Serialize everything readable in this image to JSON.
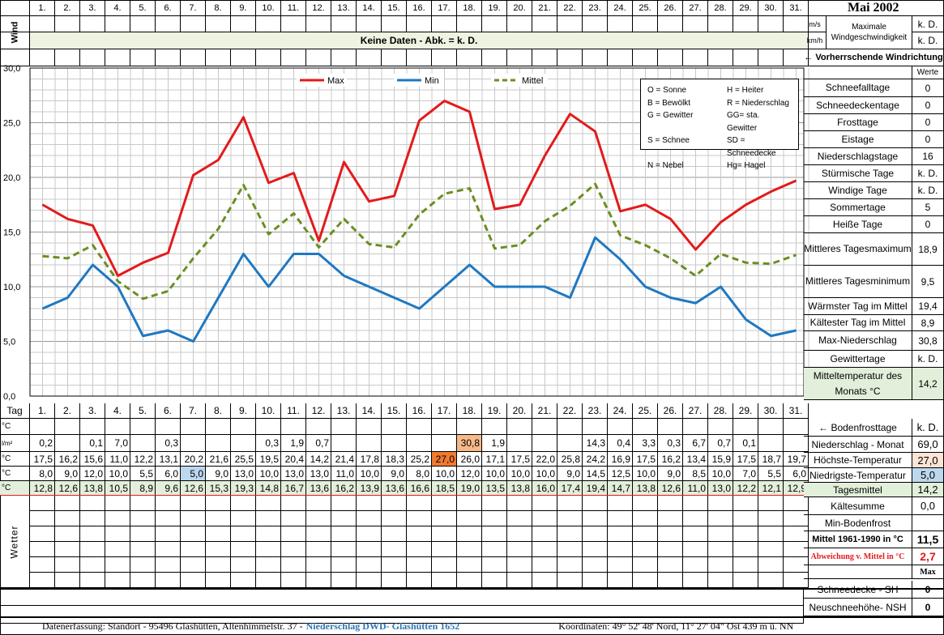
{
  "header": {
    "title": "Mai 2002",
    "days": [
      "1.",
      "2.",
      "3.",
      "4.",
      "5.",
      "6.",
      "7.",
      "8.",
      "9.",
      "10.",
      "11.",
      "12.",
      "13.",
      "14.",
      "15.",
      "16.",
      "17.",
      "18.",
      "19.",
      "20.",
      "21.",
      "22.",
      "23.",
      "24.",
      "25.",
      "26.",
      "27.",
      "28.",
      "29.",
      "30.",
      "31."
    ],
    "wind_label": "Wind",
    "no_data": "Keine Daten - Abk. = k. D.",
    "unit_ms": "m/s",
    "unit_kmh": "km/h",
    "max_wind_label_1": "Maximale",
    "max_wind_label_2": "Windgeschwindigkeit",
    "kd1": "k. D.",
    "kd2": "k. D.",
    "wind_dir": "← Vorherrschende Windrichtung"
  },
  "chart_data": {
    "type": "line",
    "categories": [
      "1.",
      "2.",
      "3.",
      "4.",
      "5.",
      "6.",
      "7.",
      "8.",
      "9.",
      "10.",
      "11.",
      "12.",
      "13.",
      "14.",
      "15.",
      "16.",
      "17.",
      "18.",
      "19.",
      "20.",
      "21.",
      "22.",
      "23.",
      "24.",
      "25.",
      "26.",
      "27.",
      "28.",
      "29.",
      "30.",
      "31."
    ],
    "ylim": [
      0,
      30
    ],
    "yticks": [
      "0,0",
      "5,0",
      "10,0",
      "15,0",
      "20,0",
      "25,0",
      "30,0"
    ],
    "grid": true,
    "legend_position": "top",
    "series": [
      {
        "name": "Max",
        "color": "#e31a1c",
        "dash": false,
        "values": [
          17.5,
          16.2,
          15.6,
          11.0,
          12.2,
          13.1,
          20.2,
          21.6,
          25.5,
          19.5,
          20.4,
          14.2,
          21.4,
          17.8,
          18.3,
          25.2,
          27.0,
          26.0,
          17.1,
          17.5,
          22.0,
          25.8,
          24.2,
          16.9,
          17.5,
          16.2,
          13.4,
          15.9,
          17.5,
          18.7,
          19.7
        ]
      },
      {
        "name": "Min",
        "color": "#1f78c1",
        "dash": false,
        "values": [
          8.0,
          9.0,
          12.0,
          10.0,
          5.5,
          6.0,
          5.0,
          9.0,
          13.0,
          10.0,
          13.0,
          13.0,
          11.0,
          10.0,
          9.0,
          8.0,
          10.0,
          12.0,
          10.0,
          10.0,
          10.0,
          9.0,
          14.5,
          12.5,
          10.0,
          9.0,
          8.5,
          10.0,
          7.0,
          5.5,
          6.0
        ]
      },
      {
        "name": "Mittel",
        "color": "#6b8e23",
        "dash": true,
        "values": [
          12.8,
          12.6,
          13.8,
          10.5,
          8.9,
          9.6,
          12.6,
          15.3,
          19.3,
          14.8,
          16.7,
          13.6,
          16.2,
          13.9,
          13.6,
          16.6,
          18.5,
          19.0,
          13.5,
          13.8,
          16.0,
          17.4,
          19.4,
          14.7,
          13.8,
          12.6,
          11.0,
          13.0,
          12.2,
          12.1,
          12.9
        ]
      }
    ]
  },
  "abbrev": [
    [
      "O = Sonne",
      "H = Heiter"
    ],
    [
      "B = Bewölkt",
      "R = Niederschlag"
    ],
    [
      "G = Gewitter",
      "GG= sta. Gewitter"
    ],
    [
      "S = Schnee",
      "SD = Schneedecke"
    ],
    [
      "N = Nebel",
      "Hg= Hagel"
    ]
  ],
  "stats": {
    "werte_header": "Werte",
    "rows": [
      {
        "label": "Schneefalltage",
        "value": "0"
      },
      {
        "label": "Schneedeckentage",
        "value": "0"
      },
      {
        "label": "Frosttage",
        "value": "0"
      },
      {
        "label": "Eistage",
        "value": "0"
      },
      {
        "label": "Niederschlagstage",
        "value": "16"
      },
      {
        "label": "Stürmische Tage",
        "value": "k. D."
      },
      {
        "label": "Windige Tage",
        "value": "k. D."
      },
      {
        "label": "Sommertage",
        "value": "5"
      },
      {
        "label": "Heiße Tage",
        "value": "0"
      },
      {
        "label": "Mittleres Tagesmaximum",
        "value": "18,9"
      },
      {
        "label": "Mittleres Tagesminimum",
        "value": "9,5"
      },
      {
        "label": "Wärmster Tag im Mittel",
        "value": "19,4"
      },
      {
        "label": "Kältester Tag im Mittel",
        "value": "8,9"
      },
      {
        "label": "Max-Niederschlag",
        "value": "30,8"
      },
      {
        "label": "Gewittertage",
        "value": "k. D."
      },
      {
        "label": "Mitteltemperatur des Monats °C",
        "value": "14,2"
      }
    ]
  },
  "table": {
    "tag_label": "Tag",
    "unit_c": "°C",
    "unit_lm": "l/m²",
    "boden_c": [],
    "precip": [
      "0,2",
      "",
      "0,1",
      "7,0",
      "",
      "0,3",
      "",
      "",
      "",
      "0,3",
      "1,9",
      "0,7",
      "",
      "",
      "",
      "",
      "",
      "30,8",
      "1,9",
      "",
      "",
      "",
      "14,3",
      "0,4",
      "3,3",
      "0,3",
      "6,7",
      "0,7",
      "0,1",
      "",
      ""
    ],
    "max": [
      "17,5",
      "16,2",
      "15,6",
      "11,0",
      "12,2",
      "13,1",
      "20,2",
      "21,6",
      "25,5",
      "19,5",
      "20,4",
      "14,2",
      "21,4",
      "17,8",
      "18,3",
      "25,2",
      "27,0",
      "26,0",
      "17,1",
      "17,5",
      "22,0",
      "25,8",
      "24,2",
      "16,9",
      "17,5",
      "16,2",
      "13,4",
      "15,9",
      "17,5",
      "18,7",
      "19,7"
    ],
    "min": [
      "8,0",
      "9,0",
      "12,0",
      "10,0",
      "5,5",
      "6,0",
      "5,0",
      "9,0",
      "13,0",
      "10,0",
      "13,0",
      "13,0",
      "11,0",
      "10,0",
      "9,0",
      "8,0",
      "10,0",
      "12,0",
      "10,0",
      "10,0",
      "10,0",
      "9,0",
      "14,5",
      "12,5",
      "10,0",
      "9,0",
      "8,5",
      "10,0",
      "7,0",
      "5,5",
      "6,0"
    ],
    "mean": [
      "12,8",
      "12,6",
      "13,8",
      "10,5",
      "8,9",
      "9,6",
      "12,6",
      "15,3",
      "19,3",
      "14,8",
      "16,7",
      "13,6",
      "16,2",
      "13,9",
      "13,6",
      "16,6",
      "18,5",
      "19,0",
      "13,5",
      "13,8",
      "16,0",
      "17,4",
      "19,4",
      "14,7",
      "13,8",
      "12,6",
      "11,0",
      "13,0",
      "12,2",
      "12,1",
      "12,9"
    ],
    "wetter_label": "Wetter"
  },
  "summary": [
    {
      "label": "← Bodenfrosttage",
      "value": "k. D."
    },
    {
      "label": "Niederschlag - Monat",
      "value": "69,0"
    },
    {
      "label": "Höchste-Temperatur",
      "value": "27,0"
    },
    {
      "label": "Niedrigste-Temperatur",
      "value": "5,0"
    },
    {
      "label": "Tagesmittel",
      "value": "14,2"
    },
    {
      "label": "Kältesumme",
      "value": "0,0"
    },
    {
      "label": "Min-Bodenfrost",
      "value": ""
    },
    {
      "label": "Mittel 1961-1990 in °C",
      "value": "11,5"
    },
    {
      "label": "Abweichung v. Mittel in °C",
      "value": "2,7"
    },
    {
      "label": "",
      "value": "Max"
    }
  ],
  "snow": [
    {
      "label": "Schneedecke -  SH",
      "value": "0"
    },
    {
      "label": "Neuschneehöhe- NSH",
      "value": "0"
    }
  ],
  "footer": {
    "left": "Datenerfassung:  Standort -  95496  Glashütten, Altenhimmelstr. 37 - ",
    "blue": "Niederschlag DWD- Glashütten 1652",
    "right": "Koordinaten:  49° 52' 48' Nord,   11° 27' 04\" Ost   439 m ü. NN"
  },
  "colors": {
    "highlight_max": "#f07a30",
    "highlight_precip": "#f7b98a",
    "highlight_min": "#bdd7ee",
    "mean_row": "#e2efda",
    "header_row": "#eef3e2",
    "max_cell": "#fce4d6"
  }
}
